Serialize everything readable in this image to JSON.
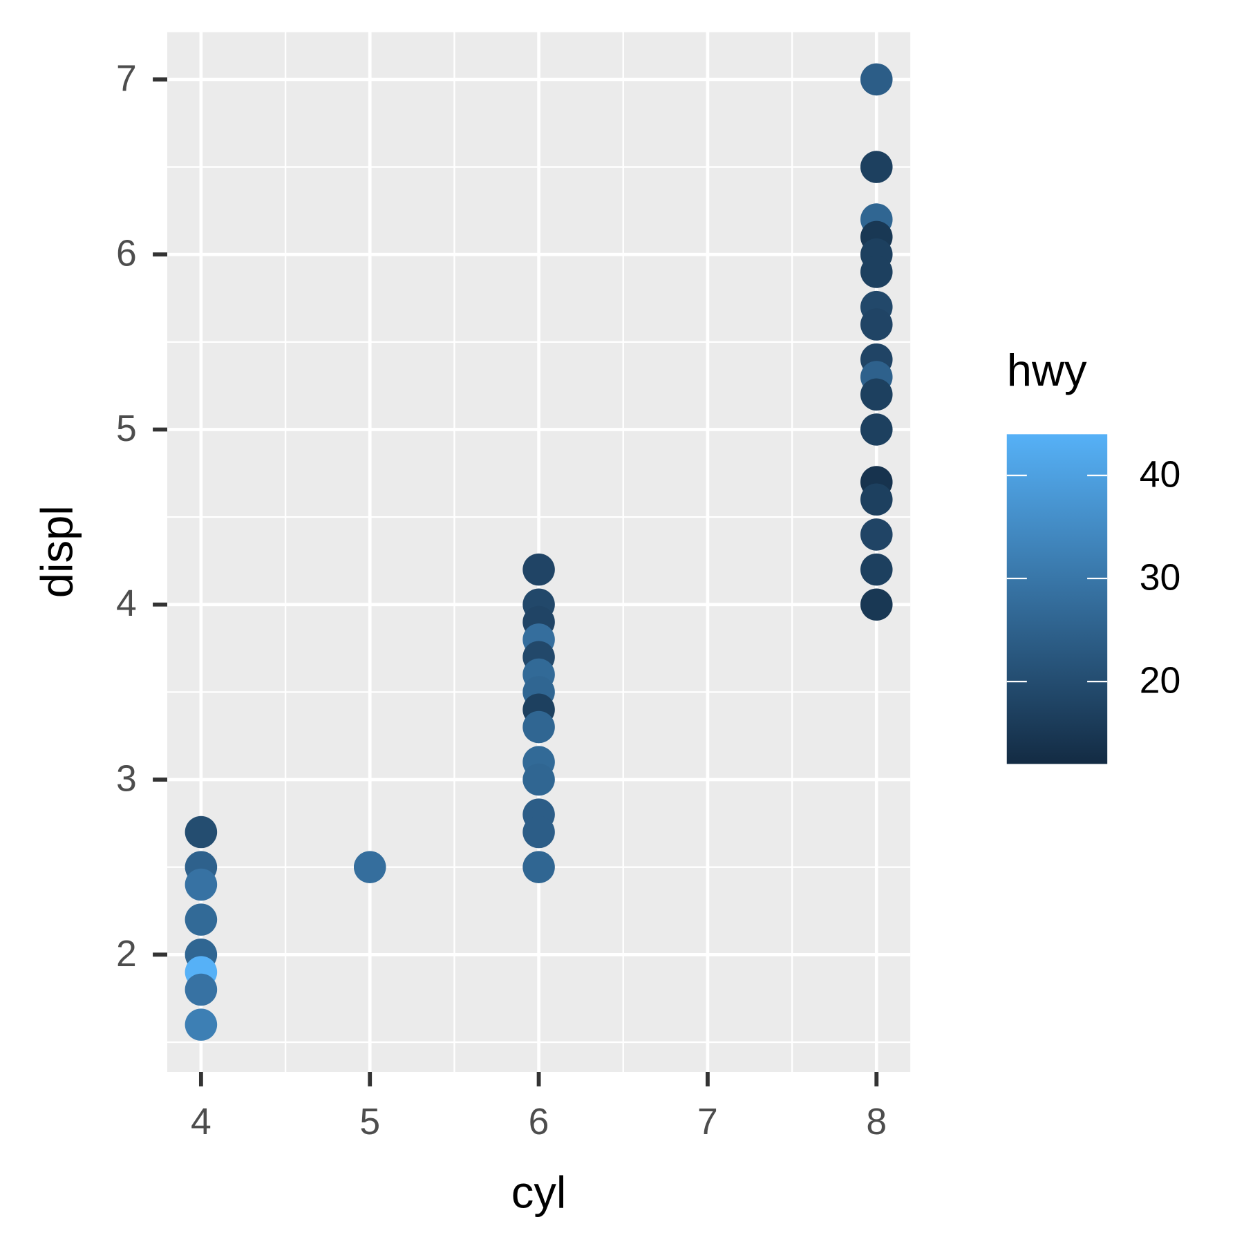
{
  "chart_data": {
    "type": "scatter",
    "x_label": "cyl",
    "y_label": "displ",
    "color_title": "hwy",
    "x": [
      4,
      4,
      4,
      4,
      4,
      4,
      4,
      4,
      5,
      6,
      6,
      6,
      6,
      6,
      6,
      6,
      6,
      6,
      6,
      6,
      6,
      6,
      6,
      8,
      8,
      8,
      8,
      8,
      8,
      8,
      8,
      8,
      8,
      8,
      8,
      8,
      8,
      8,
      8,
      8
    ],
    "y": [
      2.7,
      2.5,
      2.4,
      2.2,
      2.0,
      1.9,
      1.8,
      1.6,
      2.5,
      4.2,
      4.0,
      3.9,
      3.8,
      3.7,
      3.6,
      3.5,
      3.4,
      3.3,
      3.1,
      3.0,
      2.8,
      2.7,
      2.5,
      7.0,
      6.5,
      6.2,
      6.1,
      6.0,
      5.9,
      5.7,
      5.6,
      5.4,
      5.3,
      5.2,
      5.0,
      4.7,
      4.6,
      4.4,
      4.2,
      4.0
    ],
    "color_values": [
      20,
      25,
      29,
      27,
      26,
      44,
      29,
      32,
      28,
      18,
      19,
      18,
      28,
      19,
      27,
      26,
      17,
      26,
      27,
      26,
      24,
      24,
      26,
      24,
      17,
      26,
      15,
      17,
      17,
      19,
      18,
      18,
      25,
      17,
      17,
      14,
      17,
      18,
      17,
      15
    ],
    "xlim": [
      3.8,
      8.2
    ],
    "ylim": [
      1.33,
      7.27
    ],
    "xticks": [
      4,
      5,
      6,
      7,
      8
    ],
    "yticks": [
      2,
      3,
      4,
      5,
      6,
      7
    ],
    "xminor": [
      4.5,
      5.5,
      6.5,
      7.5
    ],
    "yminor": [
      1.5,
      2.5,
      3.5,
      4.5,
      5.5,
      6.5
    ],
    "grid": true,
    "colorlim": [
      12,
      44
    ],
    "colorticks": [
      20,
      30,
      40
    ],
    "color_low": "#132B43",
    "color_high": "#56B1F7",
    "legend_position": "right"
  }
}
